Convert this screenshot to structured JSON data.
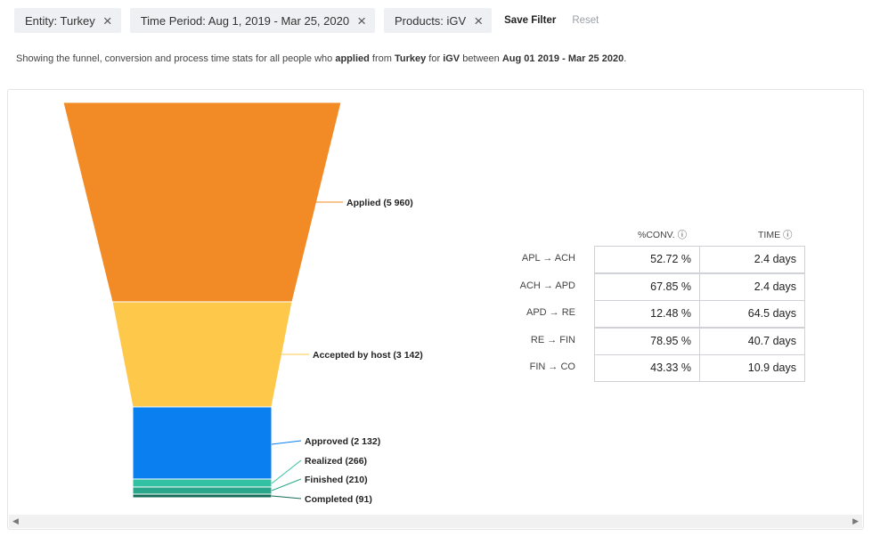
{
  "filters": {
    "chips": [
      {
        "label": "Entity: Turkey"
      },
      {
        "label": "Time Period: Aug 1, 2019 - Mar 25, 2020"
      },
      {
        "label": "Products: iGV"
      }
    ],
    "close_glyph": "×",
    "save_label": "Save Filter",
    "reset_label": "Reset"
  },
  "summary": {
    "text1": "Showing the funnel, conversion and process time stats for all people who ",
    "b1": "applied",
    "text2": " from ",
    "b2": "Turkey",
    "text3": " for ",
    "b3": "iGV",
    "text4": " between ",
    "b4": "Aug 01 2019 - Mar 25 2020",
    "text5": "."
  },
  "chart_data": {
    "type": "funnel",
    "stages": [
      {
        "label": "Applied (5 960)",
        "value": 5960,
        "color": "#f28a25"
      },
      {
        "label": "Accepted by host (3 142)",
        "value": 3142,
        "color": "#fec84a"
      },
      {
        "label": "Approved (2 132)",
        "value": 2132,
        "color": "#0a7ff0"
      },
      {
        "label": "Realized (266)",
        "value": 266,
        "color": "#33c1a3"
      },
      {
        "label": "Finished (210)",
        "value": 210,
        "color": "#2aa78a"
      },
      {
        "label": "Completed (91)",
        "value": 91,
        "color": "#146b55"
      }
    ]
  },
  "stats": {
    "headers": {
      "conv": "%CONV.",
      "time": "TIME",
      "info_icon": "ⓘ"
    },
    "arrow": "→",
    "rows": [
      {
        "from": "APL",
        "to": "ACH",
        "conv": "52.72 %",
        "time": "2.4 days"
      },
      {
        "from": "ACH",
        "to": "APD",
        "conv": "67.85 %",
        "time": "2.4 days"
      },
      {
        "from": "APD",
        "to": "RE",
        "conv": "12.48 %",
        "time": "64.5 days"
      },
      {
        "from": "RE",
        "to": "FIN",
        "conv": "78.95 %",
        "time": "40.7 days"
      },
      {
        "from": "FIN",
        "to": "CO",
        "conv": "43.33 %",
        "time": "10.9 days"
      }
    ]
  },
  "scrollbar": {
    "left_arrow": "◀",
    "right_arrow": "▶"
  }
}
